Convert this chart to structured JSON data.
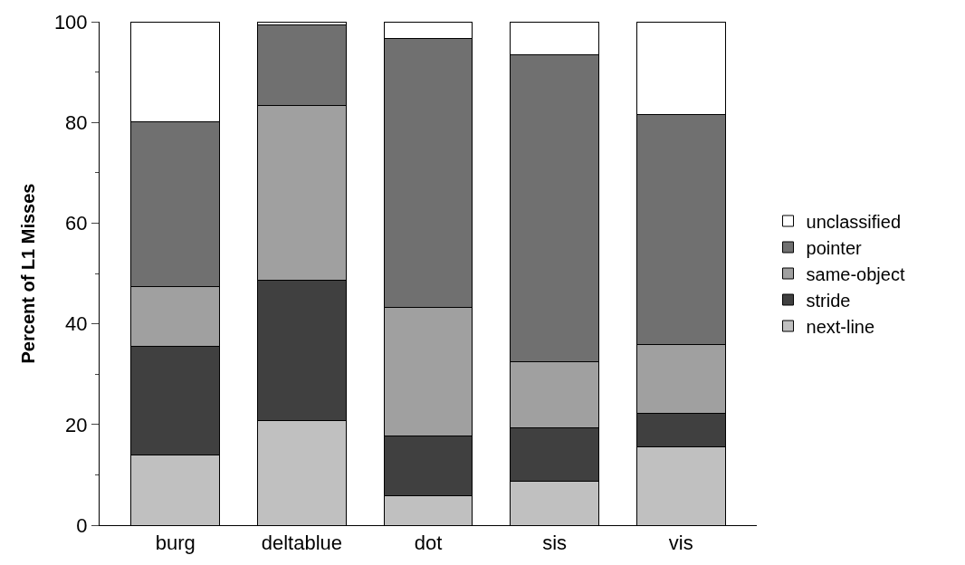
{
  "chart_data": {
    "type": "bar",
    "stacked": true,
    "ylabel": "Percent of L1 Misses",
    "categories": [
      "burg",
      "deltablue",
      "dot",
      "sis",
      "vis"
    ],
    "series": [
      {
        "name": "next-line",
        "color": "#c0c0c0",
        "values": [
          14.0,
          20.8,
          5.8,
          8.8,
          15.6
        ]
      },
      {
        "name": "stride",
        "color": "#404040",
        "values": [
          21.6,
          27.8,
          11.9,
          10.6,
          6.7
        ]
      },
      {
        "name": "same-object",
        "color": "#a0a0a0",
        "values": [
          11.8,
          34.7,
          25.5,
          13.0,
          13.5
        ]
      },
      {
        "name": "pointer",
        "color": "#707070",
        "values": [
          32.8,
          16.0,
          53.5,
          61.0,
          45.8
        ]
      },
      {
        "name": "unclassified",
        "color": "#ffffff",
        "values": [
          19.8,
          0.7,
          3.3,
          6.6,
          18.4
        ]
      }
    ],
    "ylim": [
      0,
      100
    ],
    "yticks": [
      0,
      20,
      40,
      60,
      80,
      100
    ],
    "legend": "right"
  }
}
